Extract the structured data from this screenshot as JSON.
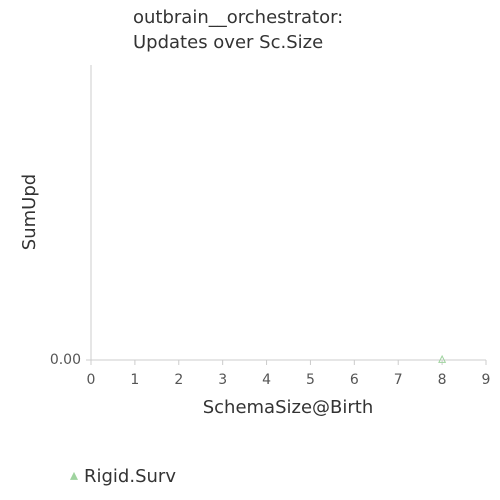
{
  "chart_data": {
    "type": "scatter",
    "title": [
      "outbrain__orchestrator:",
      "Updates over Sc.Size"
    ],
    "x_label": "SchemaSize@Birth",
    "y_label": "SumUpd",
    "series": [
      {
        "name": "Rigid.Surv",
        "color": "#9fd39f",
        "marker": "triangle",
        "x": [
          8
        ],
        "values": [
          0
        ]
      }
    ],
    "xlim": [
      0,
      9
    ],
    "xticks": [
      0,
      1,
      2,
      3,
      4,
      5,
      6,
      7,
      8,
      9
    ],
    "ylim": [
      0,
      1
    ],
    "yticks": [
      {
        "value": 0,
        "label": "0.00"
      }
    ],
    "legend": "bottom-left"
  }
}
